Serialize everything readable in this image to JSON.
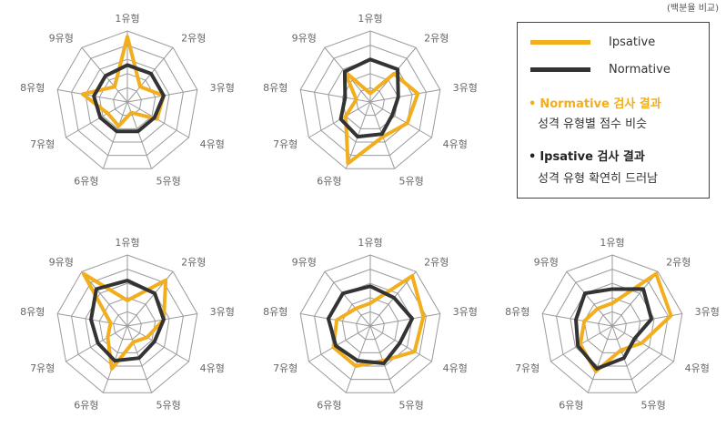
{
  "note": "(백분율 비교)",
  "colors": {
    "ipsative": "#F2AE1C",
    "normative": "#333333",
    "grid": "#9a9a9a"
  },
  "legend": {
    "ipsative_label": "Ipsative",
    "normative_label": "Normative",
    "normative_result_title": "Normative 검사 결과",
    "normative_result_desc": "성격 유형별 점수 비슷",
    "ipsative_result_title": "Ipsative 검사 결과",
    "ipsative_result_desc": "성격 유형 확연히 드러남",
    "bullet": "•"
  },
  "chart_data": [
    {
      "type": "radar",
      "categories": [
        "1유형",
        "2유형",
        "3유형",
        "4유형",
        "5유형",
        "6유형",
        "7유형",
        "8유형",
        "9유형"
      ],
      "rlim": [
        0,
        5
      ],
      "grid": true,
      "series": [
        {
          "name": "Ipsative",
          "values": [
            4.6,
            1.4,
            2.6,
            2.4,
            0.8,
            1.8,
            1.6,
            3.2,
            1.4
          ]
        },
        {
          "name": "Normative",
          "values": [
            2.6,
            2.6,
            2.6,
            2.2,
            2.2,
            2.2,
            2.2,
            2.4,
            2.4
          ]
        }
      ]
    },
    {
      "type": "radar",
      "categories": [
        "1유형",
        "2유형",
        "3유형",
        "4유형",
        "5유형",
        "6유형",
        "7유형",
        "8유형",
        "9유형"
      ],
      "rlim": [
        0,
        5
      ],
      "grid": true,
      "series": [
        {
          "name": "Ipsative",
          "values": [
            0.6,
            2.6,
            3.4,
            3.0,
            2.6,
            4.6,
            2.0,
            1.0,
            2.8
          ]
        },
        {
          "name": "Normative",
          "values": [
            3.0,
            3.0,
            2.0,
            1.8,
            2.4,
            2.6,
            2.4,
            1.8,
            2.8
          ]
        }
      ]
    },
    {
      "type": "radar",
      "categories": [
        "1유형",
        "2유형",
        "3유형",
        "4유형",
        "5유형",
        "6유형",
        "7유형",
        "8유형",
        "9유형"
      ],
      "rlim": [
        0,
        5
      ],
      "grid": true,
      "series": [
        {
          "name": "Ipsative",
          "values": [
            1.8,
            4.2,
            2.6,
            1.6,
            1.2,
            3.2,
            1.6,
            1.2,
            4.8
          ]
        },
        {
          "name": "Normative",
          "values": [
            3.2,
            3.0,
            2.6,
            2.2,
            2.4,
            2.6,
            2.4,
            2.6,
            3.4
          ]
        }
      ]
    },
    {
      "type": "radar",
      "categories": [
        "1유형",
        "2유형",
        "3유형",
        "4유형",
        "5유형",
        "6유형",
        "7유형",
        "8유형",
        "9유형"
      ],
      "rlim": [
        0,
        5
      ],
      "grid": true,
      "series": [
        {
          "name": "Ipsative",
          "values": [
            1.6,
            4.6,
            3.8,
            3.6,
            2.6,
            3.0,
            3.0,
            2.4,
            1.6
          ]
        },
        {
          "name": "Normative",
          "values": [
            2.8,
            2.6,
            3.0,
            2.4,
            2.8,
            2.6,
            2.8,
            3.0,
            3.0
          ]
        }
      ]
    },
    {
      "type": "radar",
      "categories": [
        "1유형",
        "2유형",
        "3유형",
        "4유형",
        "5유형",
        "6유형",
        "7유형",
        "8유형",
        "9유형"
      ],
      "rlim": [
        0,
        5
      ],
      "grid": true,
      "series": [
        {
          "name": "Ipsative",
          "values": [
            1.6,
            4.8,
            4.2,
            2.4,
            1.8,
            3.4,
            2.6,
            2.0,
            1.6
          ]
        },
        {
          "name": "Normative",
          "values": [
            2.6,
            3.4,
            2.8,
            1.8,
            2.4,
            3.2,
            2.8,
            2.6,
            3.0
          ]
        }
      ]
    }
  ]
}
